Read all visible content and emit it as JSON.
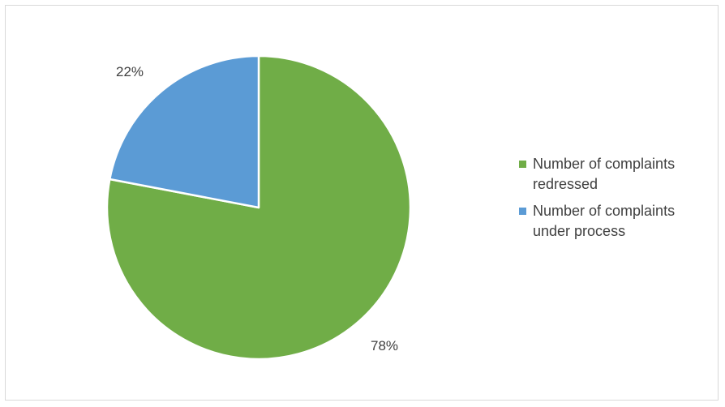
{
  "chart_data": {
    "type": "pie",
    "title": "",
    "categories": [
      "Number of complaints redressed",
      "Number of complaints under process"
    ],
    "values": [
      78,
      22
    ],
    "data_labels": [
      "78%",
      "22%"
    ],
    "colors": [
      "#70AD47",
      "#5B9BD5"
    ],
    "legend_placement": "right",
    "start_angle_deg": 0,
    "direction": "clockwise"
  }
}
